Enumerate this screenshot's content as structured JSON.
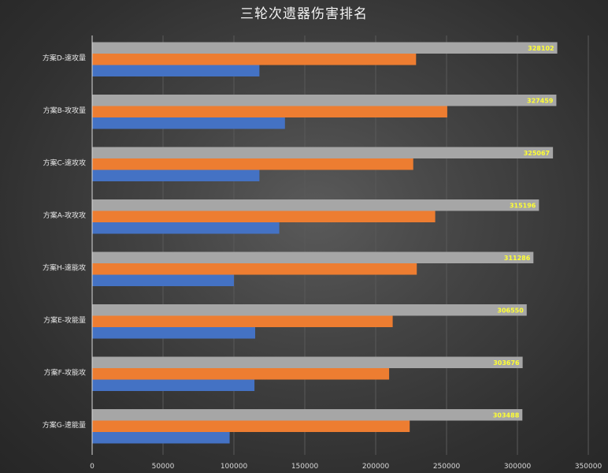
{
  "chart_data": {
    "type": "bar",
    "orientation": "horizontal",
    "title": "三轮次遗器伤害排名",
    "xlabel": "",
    "ylabel": "",
    "xlim": [
      0,
      350000
    ],
    "ticks": [
      0,
      50000,
      100000,
      150000,
      200000,
      250000,
      300000,
      350000
    ],
    "grid": true,
    "legend": "none",
    "categories": [
      "方案D-速攻量",
      "方案B-攻攻量",
      "方案C-速攻攻",
      "方案A-攻攻攻",
      "方案H-速能攻",
      "方案E-攻能量",
      "方案F-攻能攻",
      "方案G-速能量"
    ],
    "series": [
      {
        "color": "#a6a6a6",
        "values": [
          328102,
          327459,
          325067,
          315196,
          311286,
          306550,
          303676,
          303488
        ],
        "data_labels": [
          "328102",
          "327459",
          "325067",
          "315196",
          "311286",
          "306550",
          "303676",
          "303488"
        ]
      },
      {
        "color": "#ed7d31",
        "values": [
          228500,
          250500,
          226500,
          242000,
          229000,
          212000,
          209500,
          224000
        ]
      },
      {
        "color": "#4472c4",
        "values": [
          118000,
          136000,
          118000,
          132000,
          100000,
          115000,
          114500,
          97000
        ]
      }
    ]
  }
}
